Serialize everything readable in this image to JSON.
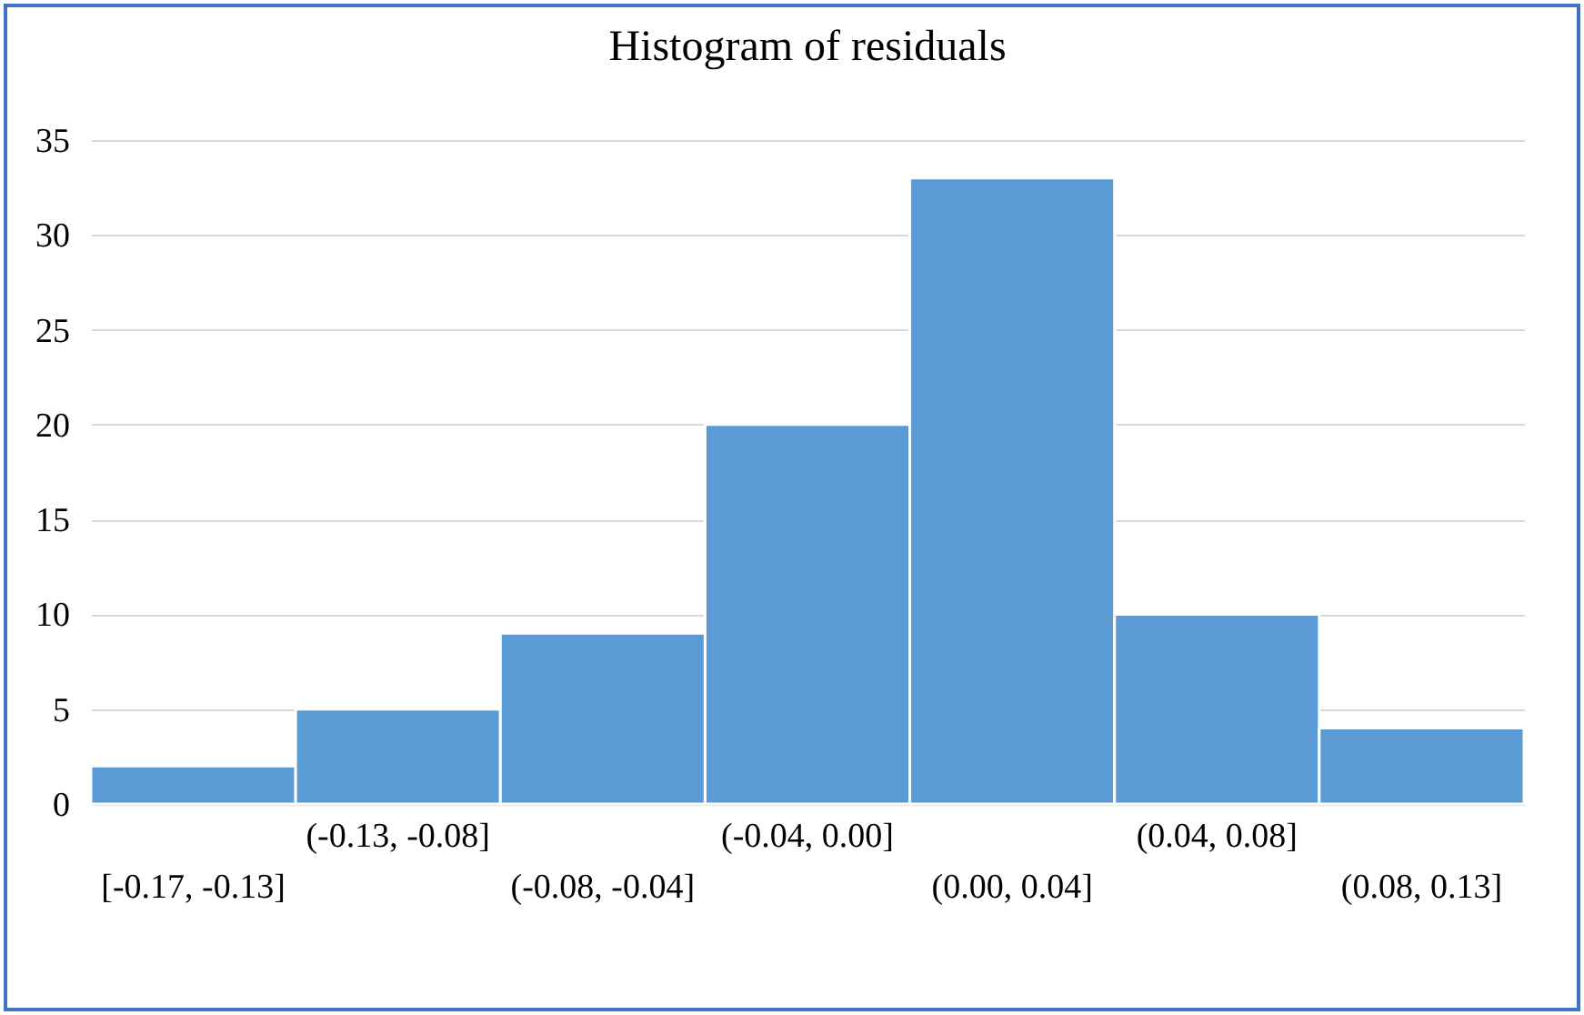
{
  "chart_data": {
    "type": "bar",
    "title": "Histogram of residuals",
    "categories": [
      "[-0.17, -0.13]",
      "(-0.13, -0.08]",
      "(-0.08, -0.04]",
      "(-0.04, 0.00]",
      "(0.00, 0.04]",
      "(0.04, 0.08]",
      "(0.08, 0.13]"
    ],
    "values": [
      2,
      5,
      9,
      20,
      33,
      10,
      4
    ],
    "color": "#5b9bd5",
    "ylim": [
      0,
      35
    ],
    "yticks": [
      0,
      5,
      10,
      15,
      20,
      25,
      30,
      35
    ],
    "grid": "y"
  }
}
